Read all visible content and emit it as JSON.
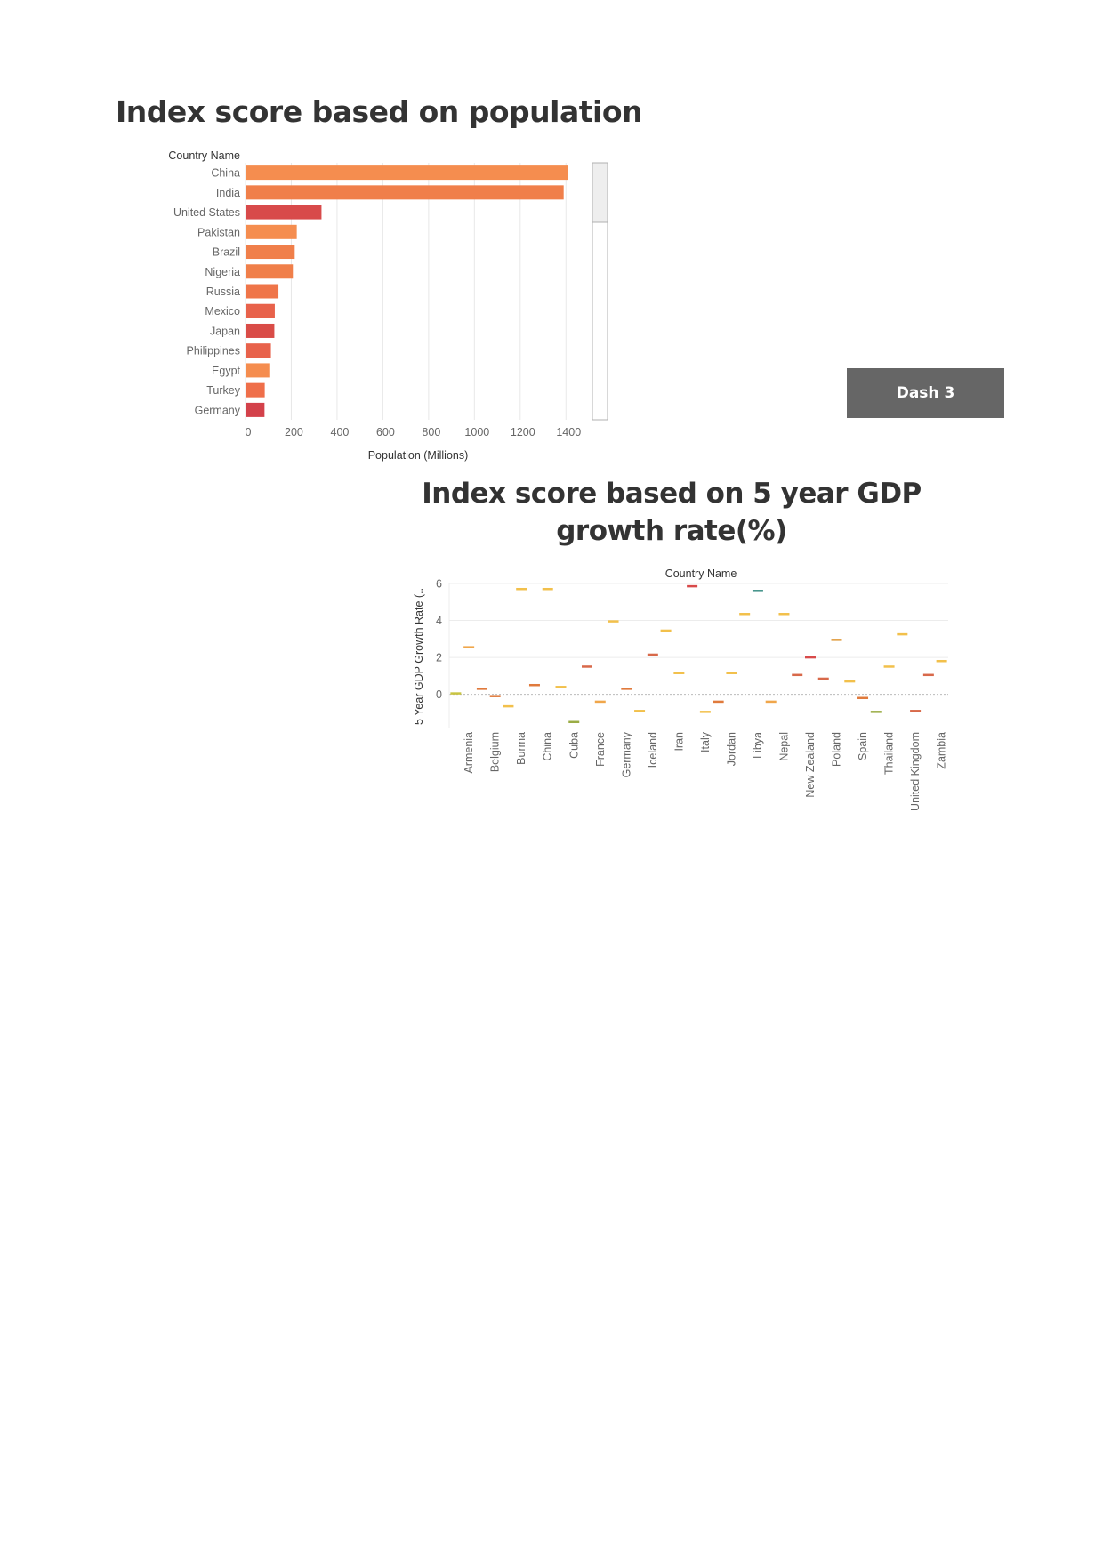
{
  "titles": {
    "population": "Index score based on population",
    "gdp": "Index score based on 5 year GDP growth rate(%)"
  },
  "dash_button": {
    "label": "Dash 3"
  },
  "chart_data": [
    {
      "type": "bar",
      "orientation": "horizontal",
      "title": "Index score based on population",
      "row_header": "Country Name",
      "xlabel": "Population (Millions)",
      "categories": [
        "China",
        "India",
        "United States",
        "Pakistan",
        "Brazil",
        "Nigeria",
        "Russia",
        "Mexico",
        "Japan",
        "Philippines",
        "Egypt",
        "Turkey",
        "Germany"
      ],
      "values": [
        1410,
        1390,
        332,
        224,
        215,
        207,
        144,
        128,
        126,
        111,
        104,
        84,
        83
      ],
      "colors": [
        "#f58d4f",
        "#f07f4a",
        "#d84a4a",
        "#f58d4f",
        "#f07f4a",
        "#f07f4a",
        "#ef7549",
        "#e8624b",
        "#d94c47",
        "#e8624b",
        "#f58d4f",
        "#ef6f4a",
        "#d3414a"
      ],
      "xlim": [
        0,
        1500
      ],
      "xticks": [
        0,
        200,
        400,
        600,
        800,
        1000,
        1200,
        1400
      ],
      "grid": true,
      "scrollbar": true
    },
    {
      "type": "scatter",
      "mark": "dash",
      "title": "Index score based on 5 year GDP growth rate(%)",
      "column_header": "Country Name",
      "ylabel": "5 Year GDP Growth Rate (..",
      "ylim": [
        -1.8,
        6.0
      ],
      "yticks": [
        0,
        2,
        4,
        6
      ],
      "labeled_categories": [
        "Armenia",
        "Belgium",
        "Burma",
        "China",
        "Cuba",
        "France",
        "Germany",
        "Iceland",
        "Iran",
        "Italy",
        "Jordan",
        "Libya",
        "Nepal",
        "New Zealand",
        "Poland",
        "Spain",
        "Thailand",
        "United Kingdom",
        "Zambia"
      ],
      "points": [
        {
          "x": 0,
          "y": 0.05,
          "color": "#c9c441"
        },
        {
          "x": 1,
          "y": 2.55,
          "color": "#f0a64a"
        },
        {
          "x": 2,
          "y": 0.3,
          "color": "#e07a3c"
        },
        {
          "x": 3,
          "y": -0.1,
          "color": "#e07a3c"
        },
        {
          "x": 4,
          "y": -0.65,
          "color": "#f2c04b"
        },
        {
          "x": 5,
          "y": 5.7,
          "color": "#f2c04b"
        },
        {
          "x": 6,
          "y": 0.5,
          "color": "#e07a3c"
        },
        {
          "x": 7,
          "y": 5.7,
          "color": "#f2c04b"
        },
        {
          "x": 8,
          "y": 0.4,
          "color": "#f2c04b"
        },
        {
          "x": 9,
          "y": -1.5,
          "color": "#9aac45"
        },
        {
          "x": 10,
          "y": 1.5,
          "color": "#d8694a"
        },
        {
          "x": 11,
          "y": -0.4,
          "color": "#f0a64a"
        },
        {
          "x": 12,
          "y": 3.95,
          "color": "#f2c04b"
        },
        {
          "x": 13,
          "y": 0.3,
          "color": "#e07a3c"
        },
        {
          "x": 14,
          "y": -0.9,
          "color": "#f2c04b"
        },
        {
          "x": 15,
          "y": 2.15,
          "color": "#d8694a"
        },
        {
          "x": 16,
          "y": 3.45,
          "color": "#f2c04b"
        },
        {
          "x": 17,
          "y": 1.15,
          "color": "#f2c04b"
        },
        {
          "x": 18,
          "y": 5.85,
          "color": "#d84a4a"
        },
        {
          "x": 19,
          "y": -0.95,
          "color": "#f2c04b"
        },
        {
          "x": 20,
          "y": -0.4,
          "color": "#e07a3c"
        },
        {
          "x": 21,
          "y": 1.15,
          "color": "#f2c04b"
        },
        {
          "x": 22,
          "y": 4.35,
          "color": "#f2c04b"
        },
        {
          "x": 23,
          "y": 5.6,
          "color": "#3d8f86"
        },
        {
          "x": 24,
          "y": -0.4,
          "color": "#f0a64a"
        },
        {
          "x": 25,
          "y": 4.35,
          "color": "#f2c04b"
        },
        {
          "x": 26,
          "y": 1.05,
          "color": "#d8694a"
        },
        {
          "x": 27,
          "y": 2.0,
          "color": "#d84a4a"
        },
        {
          "x": 28,
          "y": 0.85,
          "color": "#d8694a"
        },
        {
          "x": 29,
          "y": 2.95,
          "color": "#e09a3c"
        },
        {
          "x": 30,
          "y": 0.7,
          "color": "#f2c04b"
        },
        {
          "x": 31,
          "y": -0.2,
          "color": "#e07a3c"
        },
        {
          "x": 32,
          "y": -0.95,
          "color": "#9aac45"
        },
        {
          "x": 33,
          "y": 1.5,
          "color": "#f2c04b"
        },
        {
          "x": 34,
          "y": 3.25,
          "color": "#f2c04b"
        },
        {
          "x": 35,
          "y": -0.9,
          "color": "#d8694a"
        },
        {
          "x": 36,
          "y": 1.05,
          "color": "#d8694a"
        },
        {
          "x": 37,
          "y": 1.8,
          "color": "#f2c04b"
        }
      ],
      "grid": true
    }
  ]
}
